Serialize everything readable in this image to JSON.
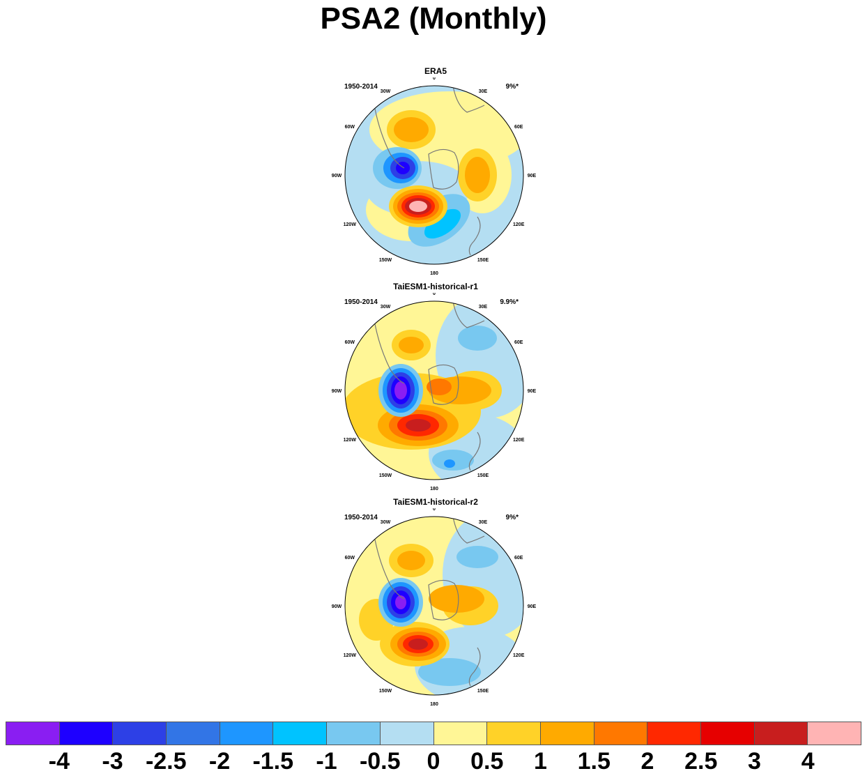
{
  "title": "PSA2 (Monthly)",
  "panels": [
    {
      "title": "ERA5",
      "period": "1950-2014",
      "variance": "9%*"
    },
    {
      "title": "TaiESM1-historical-r1",
      "period": "1950-2014",
      "variance": "9.9%*"
    },
    {
      "title": "TaiESM1-historical-r2",
      "period": "1950-2014",
      "variance": "9%*"
    }
  ],
  "longitude_labels": [
    "0",
    "30E",
    "60E",
    "90E",
    "120E",
    "150E",
    "180",
    "150W",
    "120W",
    "90W",
    "60W",
    "30W"
  ],
  "colorbar": {
    "colors": [
      "#8a1ef2",
      "#1e00ff",
      "#2d40e6",
      "#3275e6",
      "#1e96ff",
      "#00c3ff",
      "#78c8f0",
      "#b4def2",
      "#fff696",
      "#ffd228",
      "#ffaa00",
      "#ff7800",
      "#ff2800",
      "#e60000",
      "#c81e1e",
      "#ffb4b4"
    ],
    "labels": [
      "-4",
      "-3",
      "-2.5",
      "-2",
      "-1.5",
      "-1",
      "-0.5",
      "0",
      "0.5",
      "1",
      "1.5",
      "2",
      "2.5",
      "3",
      "4"
    ]
  }
}
